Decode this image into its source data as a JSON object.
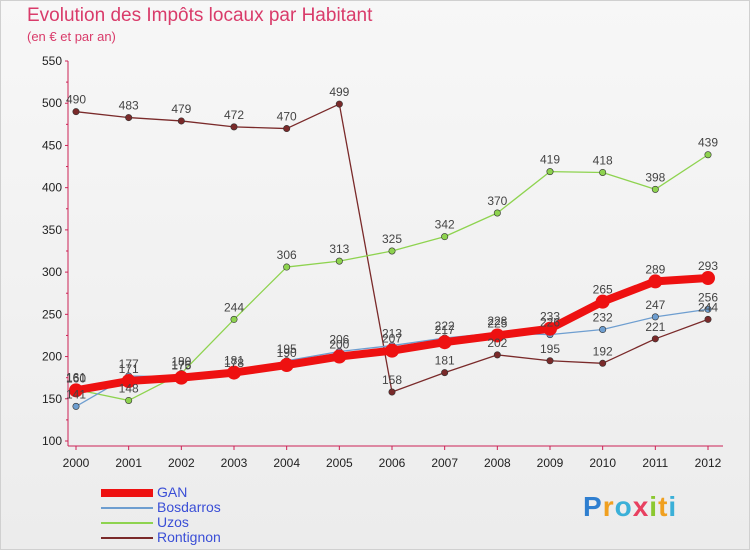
{
  "chart_data": {
    "type": "line",
    "title": "Evolution des Impôts locaux par Habitant",
    "subtitle": "(en € et par an)",
    "xlabel": "",
    "ylabel": "",
    "categories": [
      "2000",
      "2001",
      "2002",
      "2003",
      "2004",
      "2005",
      "2006",
      "2007",
      "2008",
      "2009",
      "2010",
      "2011",
      "2012"
    ],
    "ylim": [
      100,
      550
    ],
    "yticks": [
      100,
      150,
      200,
      250,
      300,
      350,
      400,
      450,
      500,
      550
    ],
    "grid": false,
    "legend_position": "bottom-left",
    "series": [
      {
        "name": "GAN",
        "color": "#ee1111",
        "values": [
          160,
          171,
          175,
          181,
          190,
          200,
          207,
          217,
          225,
          233,
          265,
          289,
          293
        ]
      },
      {
        "name": "Bosdarros",
        "color": "#6e9ed0",
        "values": [
          141,
          177,
          176,
          178,
          195,
          206,
          213,
          222,
          228,
          226,
          232,
          247,
          256
        ]
      },
      {
        "name": "Uzos",
        "color": "#8ed34f",
        "values": [
          161,
          148,
          180,
          244,
          306,
          313,
          325,
          342,
          370,
          419,
          418,
          398,
          439
        ]
      },
      {
        "name": "Rontignon",
        "color": "#7a2a2a",
        "values": [
          490,
          483,
          479,
          472,
          470,
          499,
          158,
          181,
          202,
          195,
          192,
          221,
          244
        ]
      }
    ]
  },
  "brand": {
    "letters": [
      "P",
      "r",
      "o",
      "x",
      "i",
      "t",
      "i"
    ],
    "colors": [
      "#2f7fd0",
      "#f0a020",
      "#3bb0d8",
      "#e84060",
      "#8cc830",
      "#f0a020",
      "#3bb0d8"
    ]
  }
}
